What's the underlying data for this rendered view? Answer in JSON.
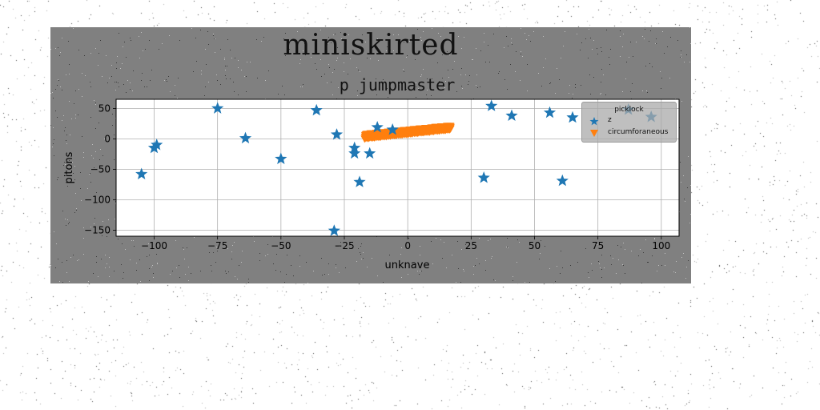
{
  "figure": {
    "suptitle": "miniskirted",
    "title": "p jumpmaster",
    "background": "#808080"
  },
  "chart_data": {
    "type": "scatter",
    "title": "p jumpmaster",
    "xlabel": "unknave",
    "ylabel": "pitons",
    "xlim": [
      -115,
      107
    ],
    "ylim": [
      -160,
      65
    ],
    "xticks": [
      -100,
      -75,
      -50,
      -25,
      0,
      25,
      50,
      75,
      100
    ],
    "yticks": [
      50,
      0,
      -50,
      -100,
      -150
    ],
    "grid": true,
    "legend": {
      "title": "picklock",
      "placement": "upper right"
    },
    "series": [
      {
        "name": "z",
        "marker": "star",
        "color": "#1f77b4",
        "points": [
          [
            -105,
            -58
          ],
          [
            -100,
            -15
          ],
          [
            -99,
            -10
          ],
          [
            -75,
            50
          ],
          [
            -64,
            1
          ],
          [
            -50,
            -33
          ],
          [
            -36,
            47
          ],
          [
            -28,
            7
          ],
          [
            -29,
            -151
          ],
          [
            -21,
            -15
          ],
          [
            -21,
            -24
          ],
          [
            -19,
            -71
          ],
          [
            -15,
            -24
          ],
          [
            -12,
            19
          ],
          [
            -6,
            15
          ],
          [
            30,
            -64
          ],
          [
            33,
            54
          ],
          [
            41,
            38
          ],
          [
            56,
            43
          ],
          [
            61,
            -69
          ],
          [
            65,
            35
          ],
          [
            87,
            48
          ],
          [
            96,
            36
          ]
        ]
      },
      {
        "name": "circumforaneous",
        "marker": "triangle_down",
        "color": "#ff7f0e",
        "x_range": [
          -17,
          17
        ],
        "y_bottom_start": 0,
        "y_bottom_end": 15,
        "y_top_start": 8,
        "y_top_end": 22,
        "count": 400
      }
    ]
  }
}
